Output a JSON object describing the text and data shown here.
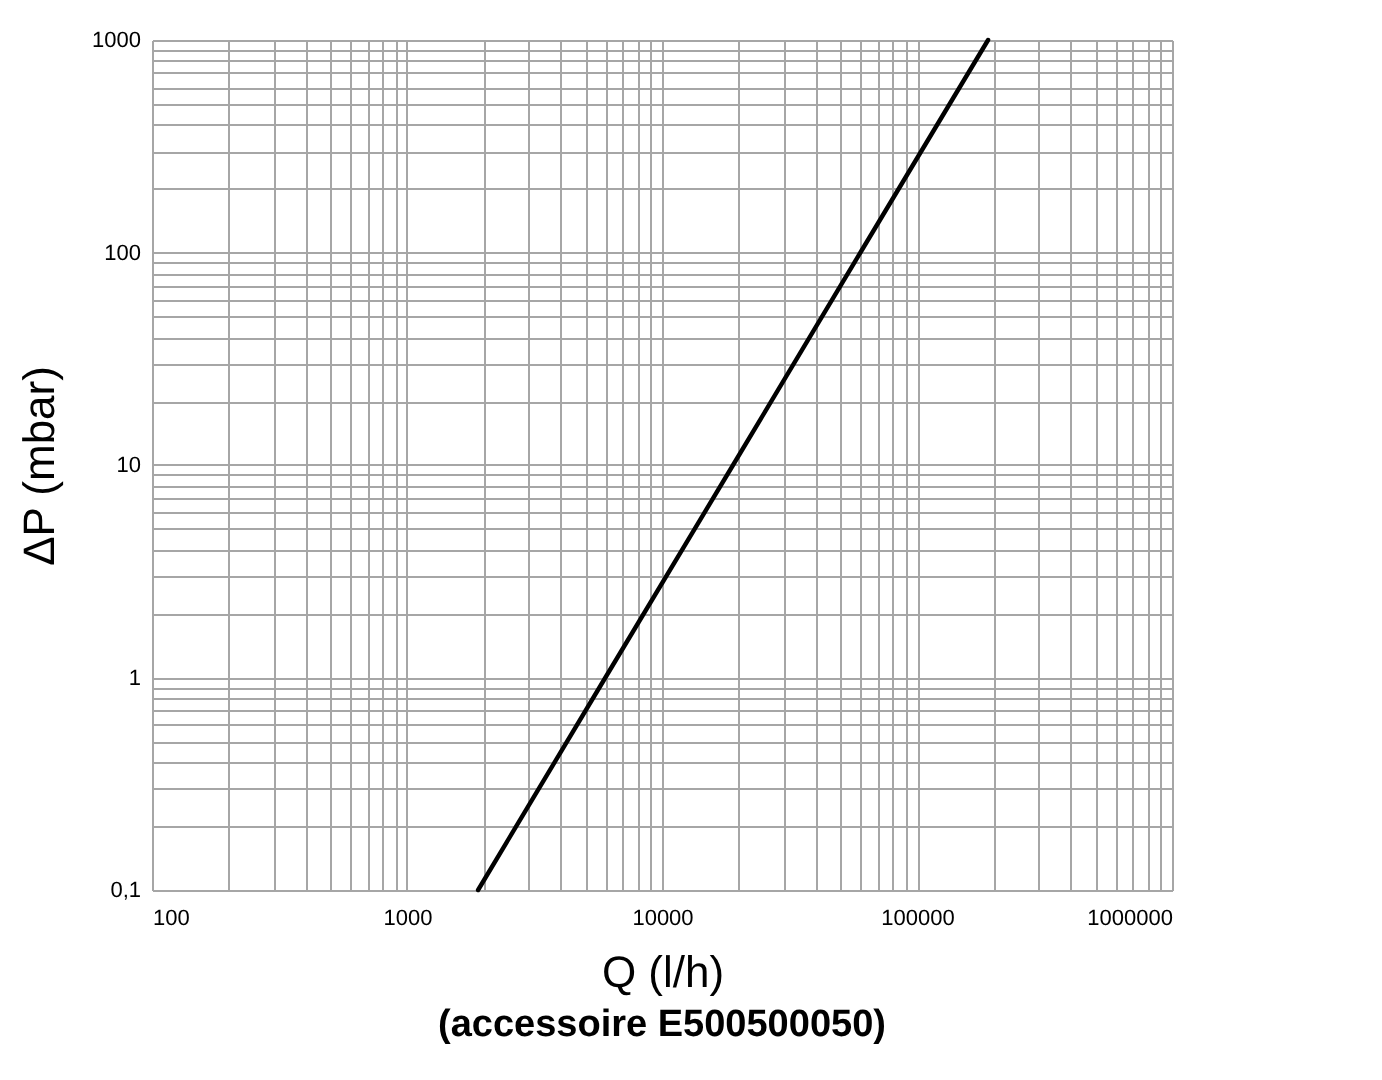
{
  "chart_data": {
    "type": "line",
    "title": "(accessoire E500500050)",
    "xlabel": "Q (l/h)",
    "ylabel": "ΔP (mbar)",
    "x": [
      1900,
      6000,
      19000,
      60000,
      190000
    ],
    "series": [
      {
        "color": "#000000",
        "values": [
          0.1,
          1,
          10,
          100,
          1000
        ]
      }
    ],
    "log": "xy",
    "grid": true,
    "marker": "none",
    "line_style": "solid",
    "xlim": [
      100,
      1000000
    ],
    "ylim": [
      0.1,
      1000
    ],
    "xticks": [
      100,
      {
        "value": 200,
        "label": null
      },
      {
        "value": 300,
        "label": null
      },
      {
        "value": 400,
        "label": null
      },
      {
        "value": 500,
        "label": null
      },
      {
        "value": 600,
        "label": null
      },
      {
        "value": 700,
        "label": null
      },
      {
        "value": 800,
        "label": null
      },
      {
        "value": 900,
        "label": null
      },
      1000,
      {
        "value": 2000,
        "label": null
      },
      {
        "value": 3000,
        "label": null
      },
      {
        "value": 4000,
        "label": null
      },
      {
        "value": 5000,
        "label": null
      },
      {
        "value": 6000,
        "label": null
      },
      {
        "value": 7000,
        "label": null
      },
      {
        "value": 8000,
        "label": null
      },
      {
        "value": 9000,
        "label": null
      },
      10000,
      {
        "value": 20000,
        "label": null
      },
      {
        "value": 30000,
        "label": null
      },
      {
        "value": 40000,
        "label": null
      },
      {
        "value": 50000,
        "label": null
      },
      {
        "value": 60000,
        "label": null
      },
      {
        "value": 70000,
        "label": null
      },
      {
        "value": 80000,
        "label": null
      },
      {
        "value": 90000,
        "label": null
      },
      100000,
      {
        "value": 200000,
        "label": null
      },
      {
        "value": 300000,
        "label": null
      },
      {
        "value": 400000,
        "label": null
      },
      {
        "value": 500000,
        "label": null
      },
      {
        "value": 600000,
        "label": null
      },
      {
        "value": 700000,
        "label": null
      },
      {
        "value": 800000,
        "label": null
      },
      {
        "value": 900000,
        "label": null
      },
      1000000
    ],
    "yticks": [
      {
        "value": 0.1,
        "label": "0,1"
      },
      {
        "value": 0.2,
        "label": null
      },
      {
        "value": 0.3,
        "label": null
      },
      {
        "value": 0.4,
        "label": null
      },
      {
        "value": 0.5,
        "label": null
      },
      {
        "value": 0.6,
        "label": null
      },
      {
        "value": 0.7,
        "label": null
      },
      {
        "value": 0.8,
        "label": null
      },
      {
        "value": 0.9,
        "label": null
      },
      1,
      {
        "value": 2,
        "label": null
      },
      {
        "value": 3,
        "label": null
      },
      {
        "value": 4,
        "label": null
      },
      {
        "value": 5,
        "label": null
      },
      {
        "value": 6,
        "label": null
      },
      {
        "value": 7,
        "label": null
      },
      {
        "value": 8,
        "label": null
      },
      {
        "value": 9,
        "label": null
      },
      10,
      {
        "value": 20,
        "label": null
      },
      {
        "value": 30,
        "label": null
      },
      {
        "value": 40,
        "label": null
      },
      {
        "value": 50,
        "label": null
      },
      {
        "value": 60,
        "label": null
      },
      {
        "value": 70,
        "label": null
      },
      {
        "value": 80,
        "label": null
      },
      {
        "value": 90,
        "label": null
      },
      100,
      {
        "value": 200,
        "label": null
      },
      {
        "value": 300,
        "label": null
      },
      {
        "value": 400,
        "label": null
      },
      {
        "value": 500,
        "label": null
      },
      {
        "value": 600,
        "label": null
      },
      {
        "value": 700,
        "label": null
      },
      {
        "value": 800,
        "label": null
      },
      {
        "value": 900,
        "label": null
      },
      1000
    ]
  }
}
